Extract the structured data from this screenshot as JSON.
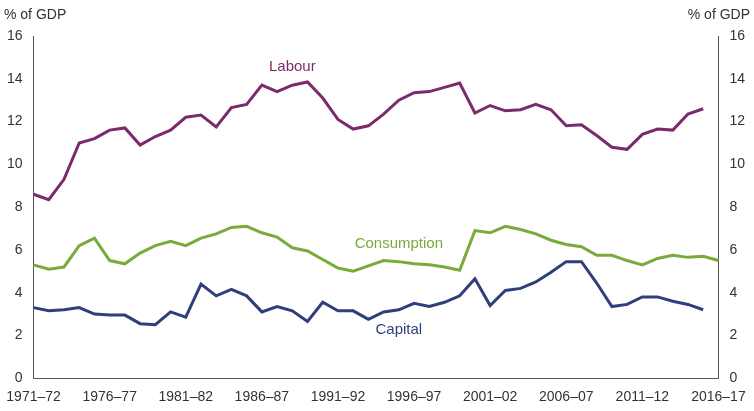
{
  "chart_data": {
    "type": "line",
    "ylabel": "% of GDP",
    "y2label": "% of GDP",
    "categories": [
      "1971–72",
      null,
      null,
      null,
      null,
      "1976–77",
      null,
      null,
      null,
      null,
      "1981–82",
      null,
      null,
      null,
      null,
      "1986–87",
      null,
      null,
      null,
      null,
      "1991–92",
      null,
      null,
      null,
      null,
      "1996–97",
      null,
      null,
      null,
      null,
      "2001–02",
      null,
      null,
      null,
      null,
      "2006–07",
      null,
      null,
      null,
      null,
      "2011–12",
      null,
      null,
      null,
      null,
      "2016–17"
    ],
    "series": [
      {
        "name": "Labour",
        "color": "#7b2a6c",
        "values": [
          8.6,
          8.35,
          9.3,
          11.0,
          11.2,
          11.6,
          11.7,
          10.9,
          11.3,
          11.6,
          12.2,
          12.3,
          11.75,
          12.65,
          12.8,
          13.7,
          13.4,
          13.7,
          13.85,
          13.1,
          12.1,
          11.65,
          11.8,
          12.35,
          13.0,
          13.35,
          13.4,
          13.6,
          13.8,
          12.4,
          12.75,
          12.5,
          12.55,
          12.8,
          12.55,
          11.8,
          11.85,
          11.35,
          10.8,
          10.7,
          11.4,
          11.65,
          11.6,
          12.35,
          12.6,
          null
        ]
      },
      {
        "name": "Consumption",
        "color": "#78ab3a",
        "values": [
          5.3,
          5.1,
          5.2,
          6.2,
          6.55,
          5.5,
          5.35,
          5.85,
          6.2,
          6.4,
          6.2,
          6.55,
          6.75,
          7.05,
          7.1,
          6.8,
          6.6,
          6.1,
          5.95,
          5.55,
          5.15,
          5.0,
          5.25,
          5.5,
          5.45,
          5.35,
          5.3,
          5.2,
          5.05,
          6.9,
          6.8,
          7.1,
          6.95,
          6.75,
          6.45,
          6.25,
          6.15,
          5.75,
          5.75,
          5.5,
          5.3,
          5.6,
          5.75,
          5.65,
          5.7,
          5.5
        ]
      },
      {
        "name": "Capital",
        "color": "#2f3f7c",
        "values": [
          3.3,
          3.15,
          3.2,
          3.3,
          3.0,
          2.95,
          2.95,
          2.55,
          2.5,
          3.1,
          2.85,
          4.4,
          3.85,
          4.15,
          3.85,
          3.1,
          3.35,
          3.15,
          2.65,
          3.55,
          3.15,
          3.15,
          2.75,
          3.1,
          3.2,
          3.5,
          3.35,
          3.55,
          3.85,
          4.65,
          3.4,
          4.1,
          4.2,
          4.5,
          4.95,
          5.45,
          5.45,
          4.45,
          3.35,
          3.45,
          3.8,
          3.8,
          3.6,
          3.45,
          3.2,
          null
        ]
      }
    ],
    "ylim": [
      0,
      16
    ],
    "yticks": [
      0,
      2,
      4,
      6,
      8,
      10,
      12,
      14,
      16
    ],
    "y2lim": [
      0,
      16
    ],
    "y2ticks": [
      0,
      2,
      4,
      6,
      8,
      10,
      12,
      14,
      16
    ],
    "grid": false
  }
}
